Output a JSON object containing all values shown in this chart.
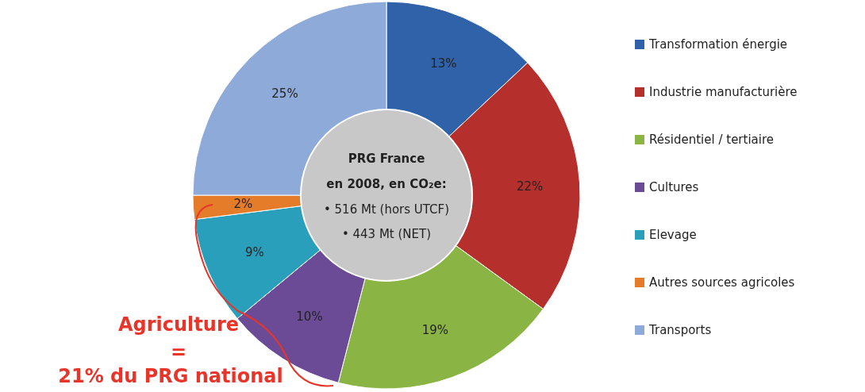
{
  "chart_data": {
    "type": "donut",
    "categories": [
      "Transformation énergie",
      "Industrie manufacturière",
      "Résidentiel / tertiaire",
      "Cultures",
      "Elevage",
      "Autres sources agricoles",
      "Transports"
    ],
    "values": [
      13,
      22,
      19,
      10,
      9,
      2,
      25
    ],
    "colors": [
      "#2f62a8",
      "#b5302d",
      "#8ab443",
      "#6b4a96",
      "#2a9fbc",
      "#e47c2a",
      "#8eaad9"
    ],
    "value_labels": [
      "13%",
      "22%",
      "19%",
      "10%",
      "9%",
      "2%",
      "25%"
    ],
    "legend": "right",
    "annotations": [
      "PRG France",
      "en 2008, en CO₂e:",
      "• 516 Mt (hors UTCF)",
      "• 443 Mt (NET)",
      "Agriculture",
      "=",
      "21% du PRG national"
    ]
  }
}
